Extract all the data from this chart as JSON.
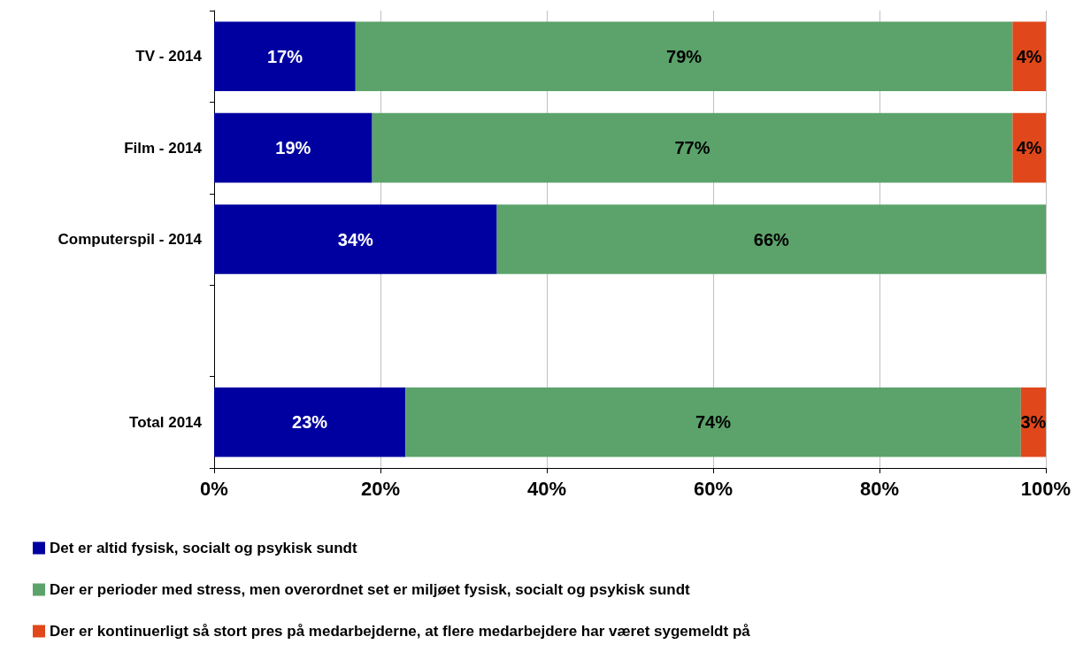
{
  "chart_data": {
    "type": "bar",
    "orientation": "horizontal",
    "stacked": true,
    "categories": [
      "TV - 2014",
      "Film - 2014",
      "Computerspil - 2014",
      null,
      "Total 2014"
    ],
    "series": [
      {
        "name": "Det er altid fysisk, socialt og psykisk sundt",
        "color": "#0000a0",
        "values": [
          17,
          19,
          34,
          null,
          23
        ],
        "value_labels": [
          "17%",
          "19%",
          "34%",
          null,
          "23%"
        ]
      },
      {
        "name": "Der er perioder med stress, men overordnet set er miljøet fysisk, socialt og psykisk sundt",
        "color": "#5ba36b",
        "values": [
          79,
          77,
          66,
          null,
          74
        ],
        "value_labels": [
          "79%",
          "77%",
          "66%",
          null,
          "74%"
        ]
      },
      {
        "name": "Der er kontinuerligt så stort pres på medarbejderne, at flere medarbejdere har været sygemeldt på",
        "color": "#e0471b",
        "values": [
          4,
          4,
          null,
          null,
          3
        ],
        "value_labels": [
          "4%",
          "4%",
          null,
          null,
          "3%"
        ]
      }
    ],
    "xlim": [
      0,
      100
    ],
    "xticks": [
      {
        "value": 0,
        "label": "0%"
      },
      {
        "value": 20,
        "label": "20%"
      },
      {
        "value": 40,
        "label": "40%"
      },
      {
        "value": 60,
        "label": "60%"
      },
      {
        "value": 80,
        "label": "80%"
      },
      {
        "value": 100,
        "label": "100%"
      }
    ],
    "grid": "x",
    "legend": "bottom"
  }
}
